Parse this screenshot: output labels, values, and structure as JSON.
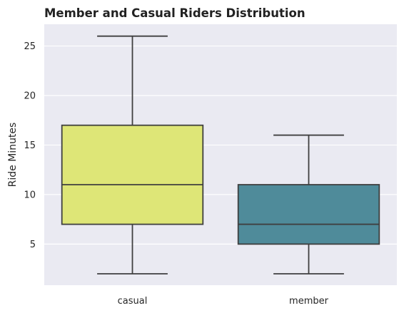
{
  "chart_data": {
    "type": "box",
    "title": "Member and Casual Riders Distribution",
    "xlabel": "",
    "ylabel": "Ride Minutes",
    "categories": [
      "casual",
      "member"
    ],
    "boxes": [
      {
        "category": "casual",
        "whisker_low": 2,
        "q1": 7,
        "median": 11,
        "q3": 17,
        "whisker_high": 26,
        "color": "#DEE677"
      },
      {
        "category": "member",
        "whisker_low": 2,
        "q1": 5,
        "median": 7,
        "q3": 11,
        "whisker_high": 16,
        "color": "#4F8B9A"
      }
    ],
    "yticks": [
      5,
      10,
      15,
      20,
      25
    ],
    "ylim": [
      0.85,
      27.2
    ],
    "grid": true,
    "colors": {
      "background": "#EAEAF2",
      "grid": "#FFFFFF",
      "line": "#3F3F3F"
    }
  }
}
